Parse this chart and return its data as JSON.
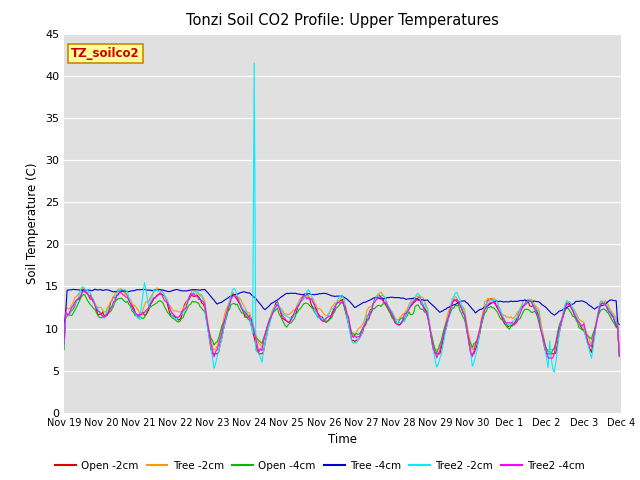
{
  "title": "Tonzi Soil CO2 Profile: Upper Temperatures",
  "xlabel": "Time",
  "ylabel": "Soil Temperature (C)",
  "ylim": [
    0,
    45
  ],
  "yticks": [
    0,
    5,
    10,
    15,
    20,
    25,
    30,
    35,
    40,
    45
  ],
  "bg_color": "#e0e0e0",
  "series": [
    {
      "label": "Open -2cm",
      "color": "#dd0000"
    },
    {
      "label": "Tree -2cm",
      "color": "#ff9900"
    },
    {
      "label": "Open -4cm",
      "color": "#00bb00"
    },
    {
      "label": "Tree -4cm",
      "color": "#0000cc"
    },
    {
      "label": "Tree2 -2cm",
      "color": "#00eeff"
    },
    {
      "label": "Tree2 -4cm",
      "color": "#ff00ff"
    }
  ],
  "watermark": "TZ_soilco2",
  "watermark_color": "#cc0000",
  "watermark_bg": "#ffff99",
  "watermark_border": "#cc8800",
  "x_tick_labels": [
    "Nov 19",
    "Nov 20",
    "Nov 21",
    "Nov 22",
    "Nov 23",
    "Nov 24",
    "Nov 25",
    "Nov 26",
    "Nov 27",
    "Nov 28",
    "Nov 29",
    "Nov 30",
    "Dec 1",
    "Dec 2",
    "Dec 3",
    "Dec 4"
  ]
}
